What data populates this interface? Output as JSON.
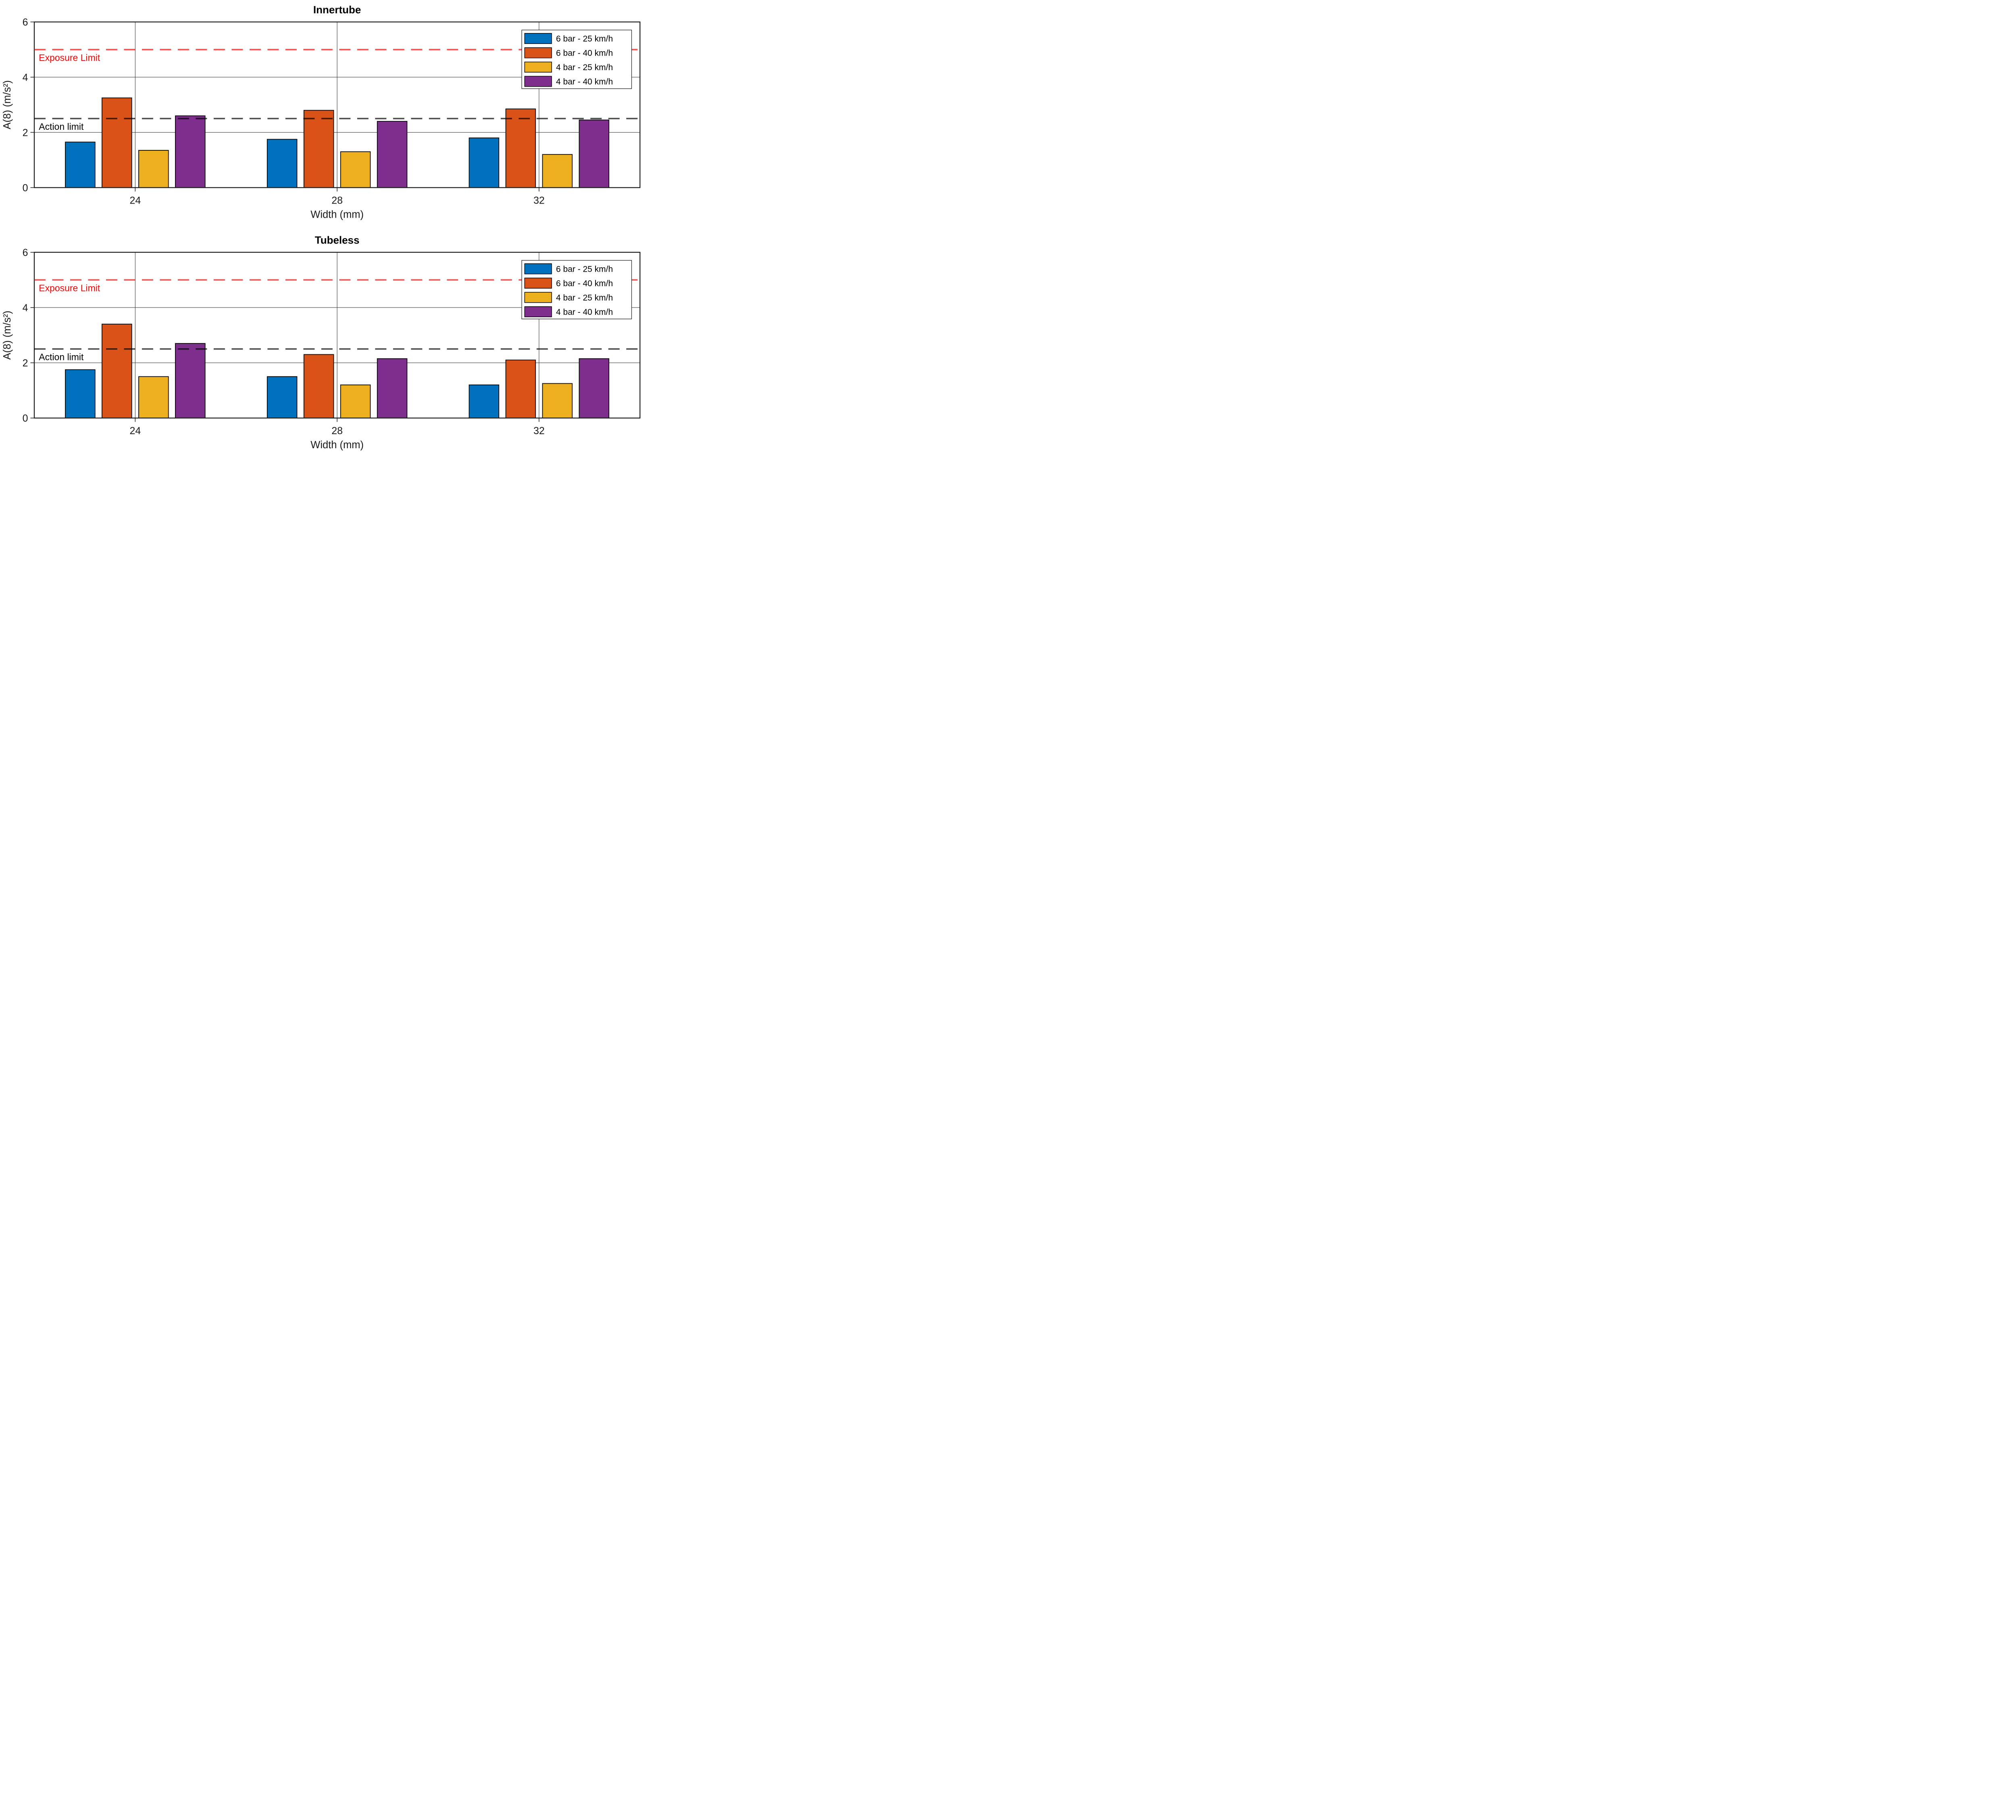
{
  "figure": {
    "background": "#ffffff",
    "panels": 2
  },
  "palette": {
    "blue": "#0072BD",
    "orange": "#D95319",
    "yellow": "#EDB120",
    "purple": "#7E2F8E",
    "exposure_line": "rgba(255,0,0,0.7)",
    "exposure_text": "#ff0000",
    "action_line": "rgba(0,0,0,0.7)",
    "action_text": "#000000",
    "axis": "#1a1a1a",
    "grid": "#2b2b2b"
  },
  "chart_data": [
    {
      "type": "bar",
      "title": "Innertube",
      "xlabel": "Width (mm)",
      "ylabel": "A(8) (m/s²)",
      "categories": [
        "24",
        "28",
        "32"
      ],
      "ylim": [
        0,
        6
      ],
      "yticks": [
        0,
        2,
        4,
        6
      ],
      "grid": true,
      "legend_position": "top-right",
      "series": [
        {
          "name": "6 bar - 25 km/h",
          "color": "#0072BD",
          "values": [
            1.65,
            1.75,
            1.8
          ]
        },
        {
          "name": "6 bar - 40 km/h",
          "color": "#D95319",
          "values": [
            3.25,
            2.8,
            2.85
          ]
        },
        {
          "name": "4 bar - 25 km/h",
          "color": "#EDB120",
          "values": [
            1.35,
            1.3,
            1.2
          ]
        },
        {
          "name": "4 bar - 40 km/h",
          "color": "#7E2F8E",
          "values": [
            2.6,
            2.4,
            2.45
          ]
        }
      ],
      "reference_lines": [
        {
          "label": "Exposure Limit",
          "value": 5,
          "line_color": "rgba(255,0,0,0.7)",
          "label_color": "#ff0000"
        },
        {
          "label": "Action limit",
          "value": 2.5,
          "line_color": "rgba(0,0,0,0.7)",
          "label_color": "#000000"
        }
      ]
    },
    {
      "type": "bar",
      "title": "Tubeless",
      "xlabel": "Width (mm)",
      "ylabel": "A(8) (m/s²)",
      "categories": [
        "24",
        "28",
        "32"
      ],
      "ylim": [
        0,
        6
      ],
      "yticks": [
        0,
        2,
        4,
        6
      ],
      "grid": true,
      "legend_position": "top-right",
      "series": [
        {
          "name": "6 bar - 25 km/h",
          "color": "#0072BD",
          "values": [
            1.75,
            1.5,
            1.2
          ]
        },
        {
          "name": "6 bar - 40 km/h",
          "color": "#D95319",
          "values": [
            3.4,
            2.3,
            2.1
          ]
        },
        {
          "name": "4 bar - 25 km/h",
          "color": "#EDB120",
          "values": [
            1.5,
            1.2,
            1.25
          ]
        },
        {
          "name": "4 bar - 40 km/h",
          "color": "#7E2F8E",
          "values": [
            2.7,
            2.15,
            2.15
          ]
        }
      ],
      "reference_lines": [
        {
          "label": "Exposure Limit",
          "value": 5,
          "line_color": "rgba(255,0,0,0.7)",
          "label_color": "#ff0000"
        },
        {
          "label": "Action limit",
          "value": 2.5,
          "line_color": "rgba(0,0,0,0.7)",
          "label_color": "#000000"
        }
      ]
    }
  ]
}
